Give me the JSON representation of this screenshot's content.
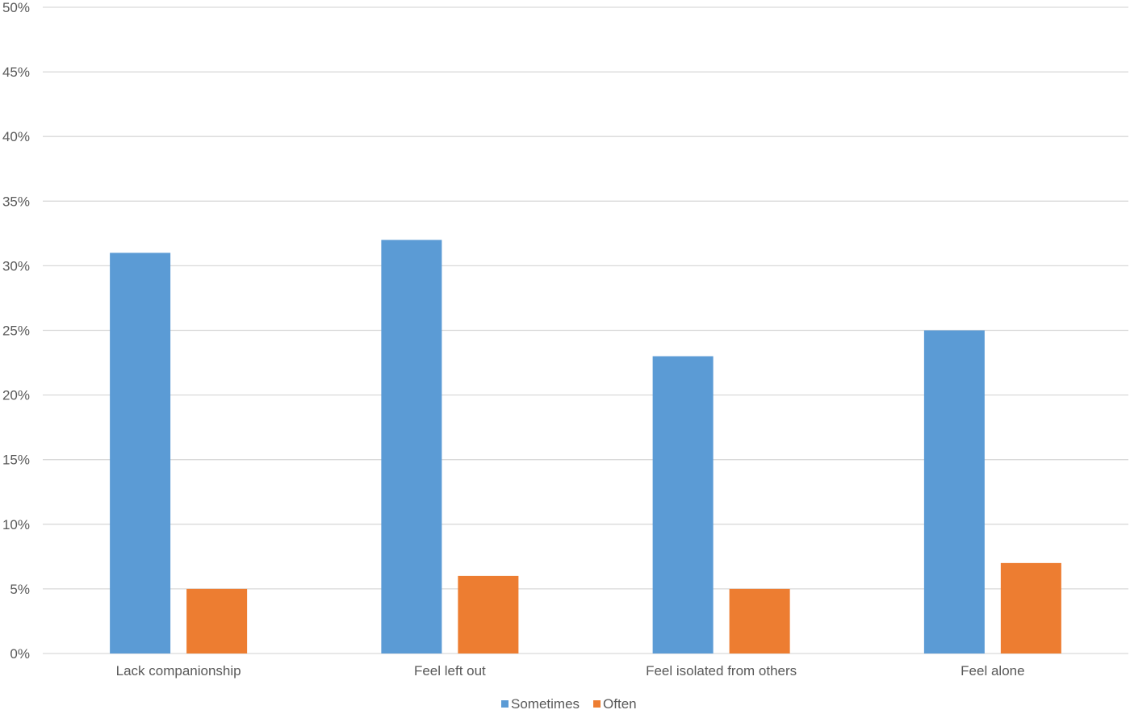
{
  "chart_data": {
    "type": "bar",
    "title": "",
    "xlabel": "",
    "ylabel": "",
    "categories": [
      "Lack companionship",
      "Feel left out",
      "Feel isolated from others",
      "Feel alone"
    ],
    "series": [
      {
        "name": "Sometimes",
        "color": "#5b9bd5",
        "values": [
          31,
          32,
          23,
          25
        ]
      },
      {
        "name": "Often",
        "color": "#ed7d31",
        "values": [
          5,
          6,
          5,
          7
        ]
      }
    ],
    "ylim": [
      0,
      50
    ],
    "y_ticks": [
      "0%",
      "5%",
      "10%",
      "15%",
      "20%",
      "25%",
      "30%",
      "35%",
      "40%",
      "45%",
      "50%"
    ],
    "y_unit": "%",
    "grid": true,
    "legend_position": "bottom"
  }
}
